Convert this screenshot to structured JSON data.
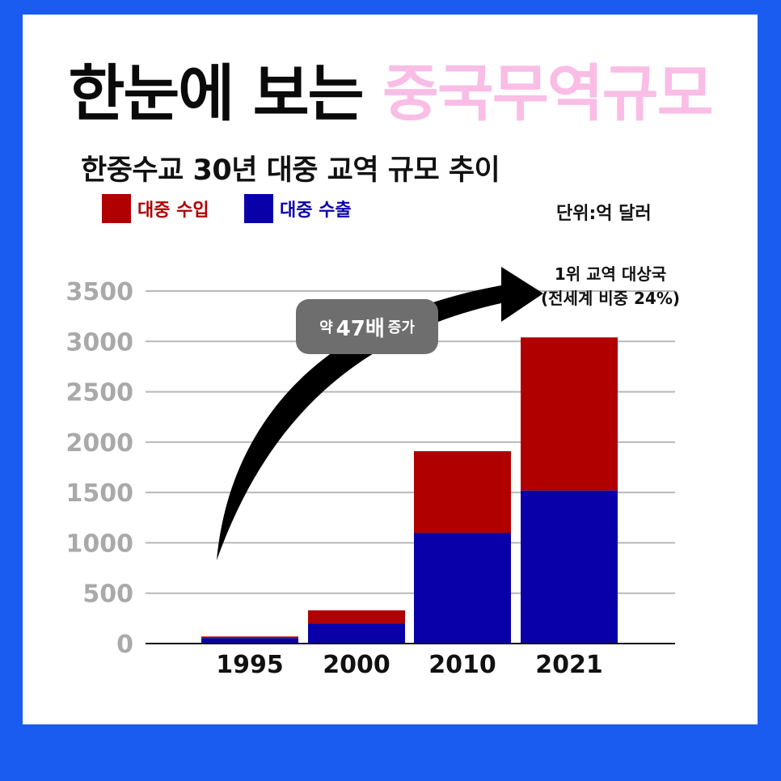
{
  "headline": {
    "dark": "한눈에 보는",
    "pink": "중국무역규모"
  },
  "colors": {
    "import": "#b00000",
    "export": "#0a00aa",
    "grid": "#b8b8b8",
    "axis_text": "#a9a9a9",
    "frame": "#1a5cf0",
    "pink": "#f9bde6"
  },
  "annotation": {
    "prefix": "약",
    "value": "47배",
    "suffix": "증가"
  },
  "note": {
    "line1": "1위 교역 대상국",
    "line2": "(전세계 비중 24%)"
  },
  "chart_data": {
    "type": "bar",
    "stacked": true,
    "title": "한중수교 30년 대중 교역 규모 추이",
    "unit": "단위:억 달러",
    "categories": [
      "1995",
      "2000",
      "2010",
      "2021"
    ],
    "series": [
      {
        "name": "대중 수출",
        "color": "#0a00aa",
        "values": [
          55,
          200,
          1100,
          1520
        ]
      },
      {
        "name": "대중 수입",
        "color": "#b00000",
        "values": [
          15,
          130,
          810,
          1520
        ]
      }
    ],
    "ylim": [
      0,
      3500
    ],
    "yticks": [
      0,
      500,
      1000,
      1500,
      2000,
      2500,
      3000,
      3500
    ],
    "grid": true,
    "legend": "top-left",
    "legend_order": [
      1,
      0
    ]
  }
}
